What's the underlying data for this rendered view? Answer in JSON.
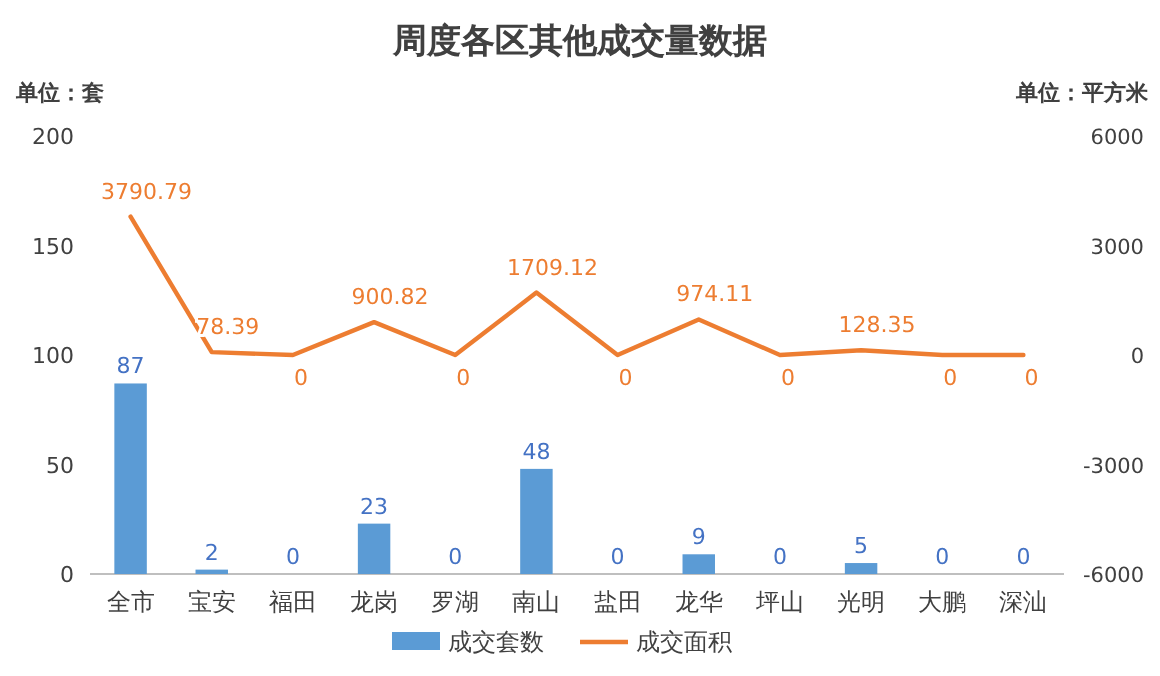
{
  "chart_data": {
    "type": "bar",
    "title": "周度各区其他成交量数据",
    "ylabel": "单位：套",
    "y2label": "单位：平方米",
    "categories": [
      "全市",
      "宝安",
      "福田",
      "龙岗",
      "罗湖",
      "南山",
      "盐田",
      "龙华",
      "坪山",
      "光明",
      "大鹏",
      "深汕"
    ],
    "series": [
      {
        "name": "成交套数",
        "color": "#5b9bd5",
        "values": [
          87,
          2,
          0,
          23,
          0,
          48,
          0,
          9,
          0,
          5,
          0,
          0
        ]
      },
      {
        "name": "成交面积",
        "type": "line",
        "axis": "y2",
        "color": "#ed7d31",
        "values": [
          3790.79,
          78.39,
          0,
          900.82,
          0,
          1709.12,
          0,
          974.11,
          0,
          128.35,
          0,
          0
        ]
      }
    ],
    "ylim": [
      0,
      200
    ],
    "yticks": [
      0,
      50,
      100,
      150,
      200
    ],
    "y2lim": [
      -6000,
      6000
    ],
    "y2ticks": [
      -6000,
      -3000,
      0,
      3000,
      6000
    ],
    "data_labels": true,
    "legend": "bottom",
    "grid": false
  }
}
